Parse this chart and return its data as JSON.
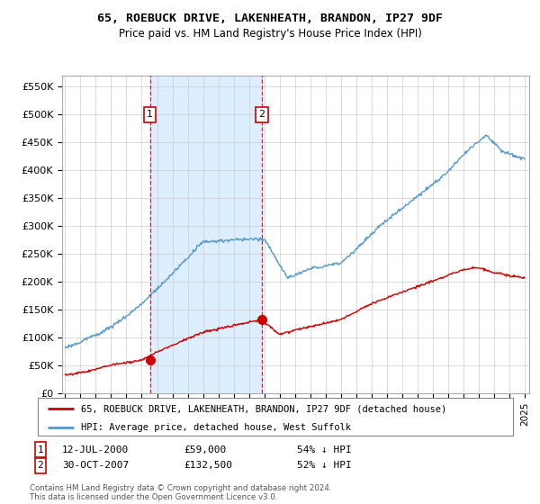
{
  "title": "65, ROEBUCK DRIVE, LAKENHEATH, BRANDON, IP27 9DF",
  "subtitle": "Price paid vs. HM Land Registry's House Price Index (HPI)",
  "ylabel_ticks": [
    "£0",
    "£50K",
    "£100K",
    "£150K",
    "£200K",
    "£250K",
    "£300K",
    "£350K",
    "£400K",
    "£450K",
    "£500K",
    "£550K"
  ],
  "ytick_values": [
    0,
    50000,
    100000,
    150000,
    200000,
    250000,
    300000,
    350000,
    400000,
    450000,
    500000,
    550000
  ],
  "ylim": [
    0,
    570000
  ],
  "xlim_start": 1994.8,
  "xlim_end": 2025.3,
  "legend_line1": "65, ROEBUCK DRIVE, LAKENHEATH, BRANDON, IP27 9DF (detached house)",
  "legend_line2": "HPI: Average price, detached house, West Suffolk",
  "annotation1_num": "1",
  "annotation1_date": "12-JUL-2000",
  "annotation1_price": "£59,000",
  "annotation1_hpi": "54% ↓ HPI",
  "annotation1_year": 2000.53,
  "annotation1_price_val": 59000,
  "annotation2_num": "2",
  "annotation2_date": "30-OCT-2007",
  "annotation2_price": "£132,500",
  "annotation2_hpi": "52% ↓ HPI",
  "annotation2_year": 2007.83,
  "annotation2_price_val": 132500,
  "footer": "Contains HM Land Registry data © Crown copyright and database right 2024.\nThis data is licensed under the Open Government Licence v3.0.",
  "red_color": "#cc0000",
  "blue_color": "#5599cc",
  "shade_color": "#ddeeff",
  "background_color": "#ffffff",
  "grid_color": "#cccccc"
}
